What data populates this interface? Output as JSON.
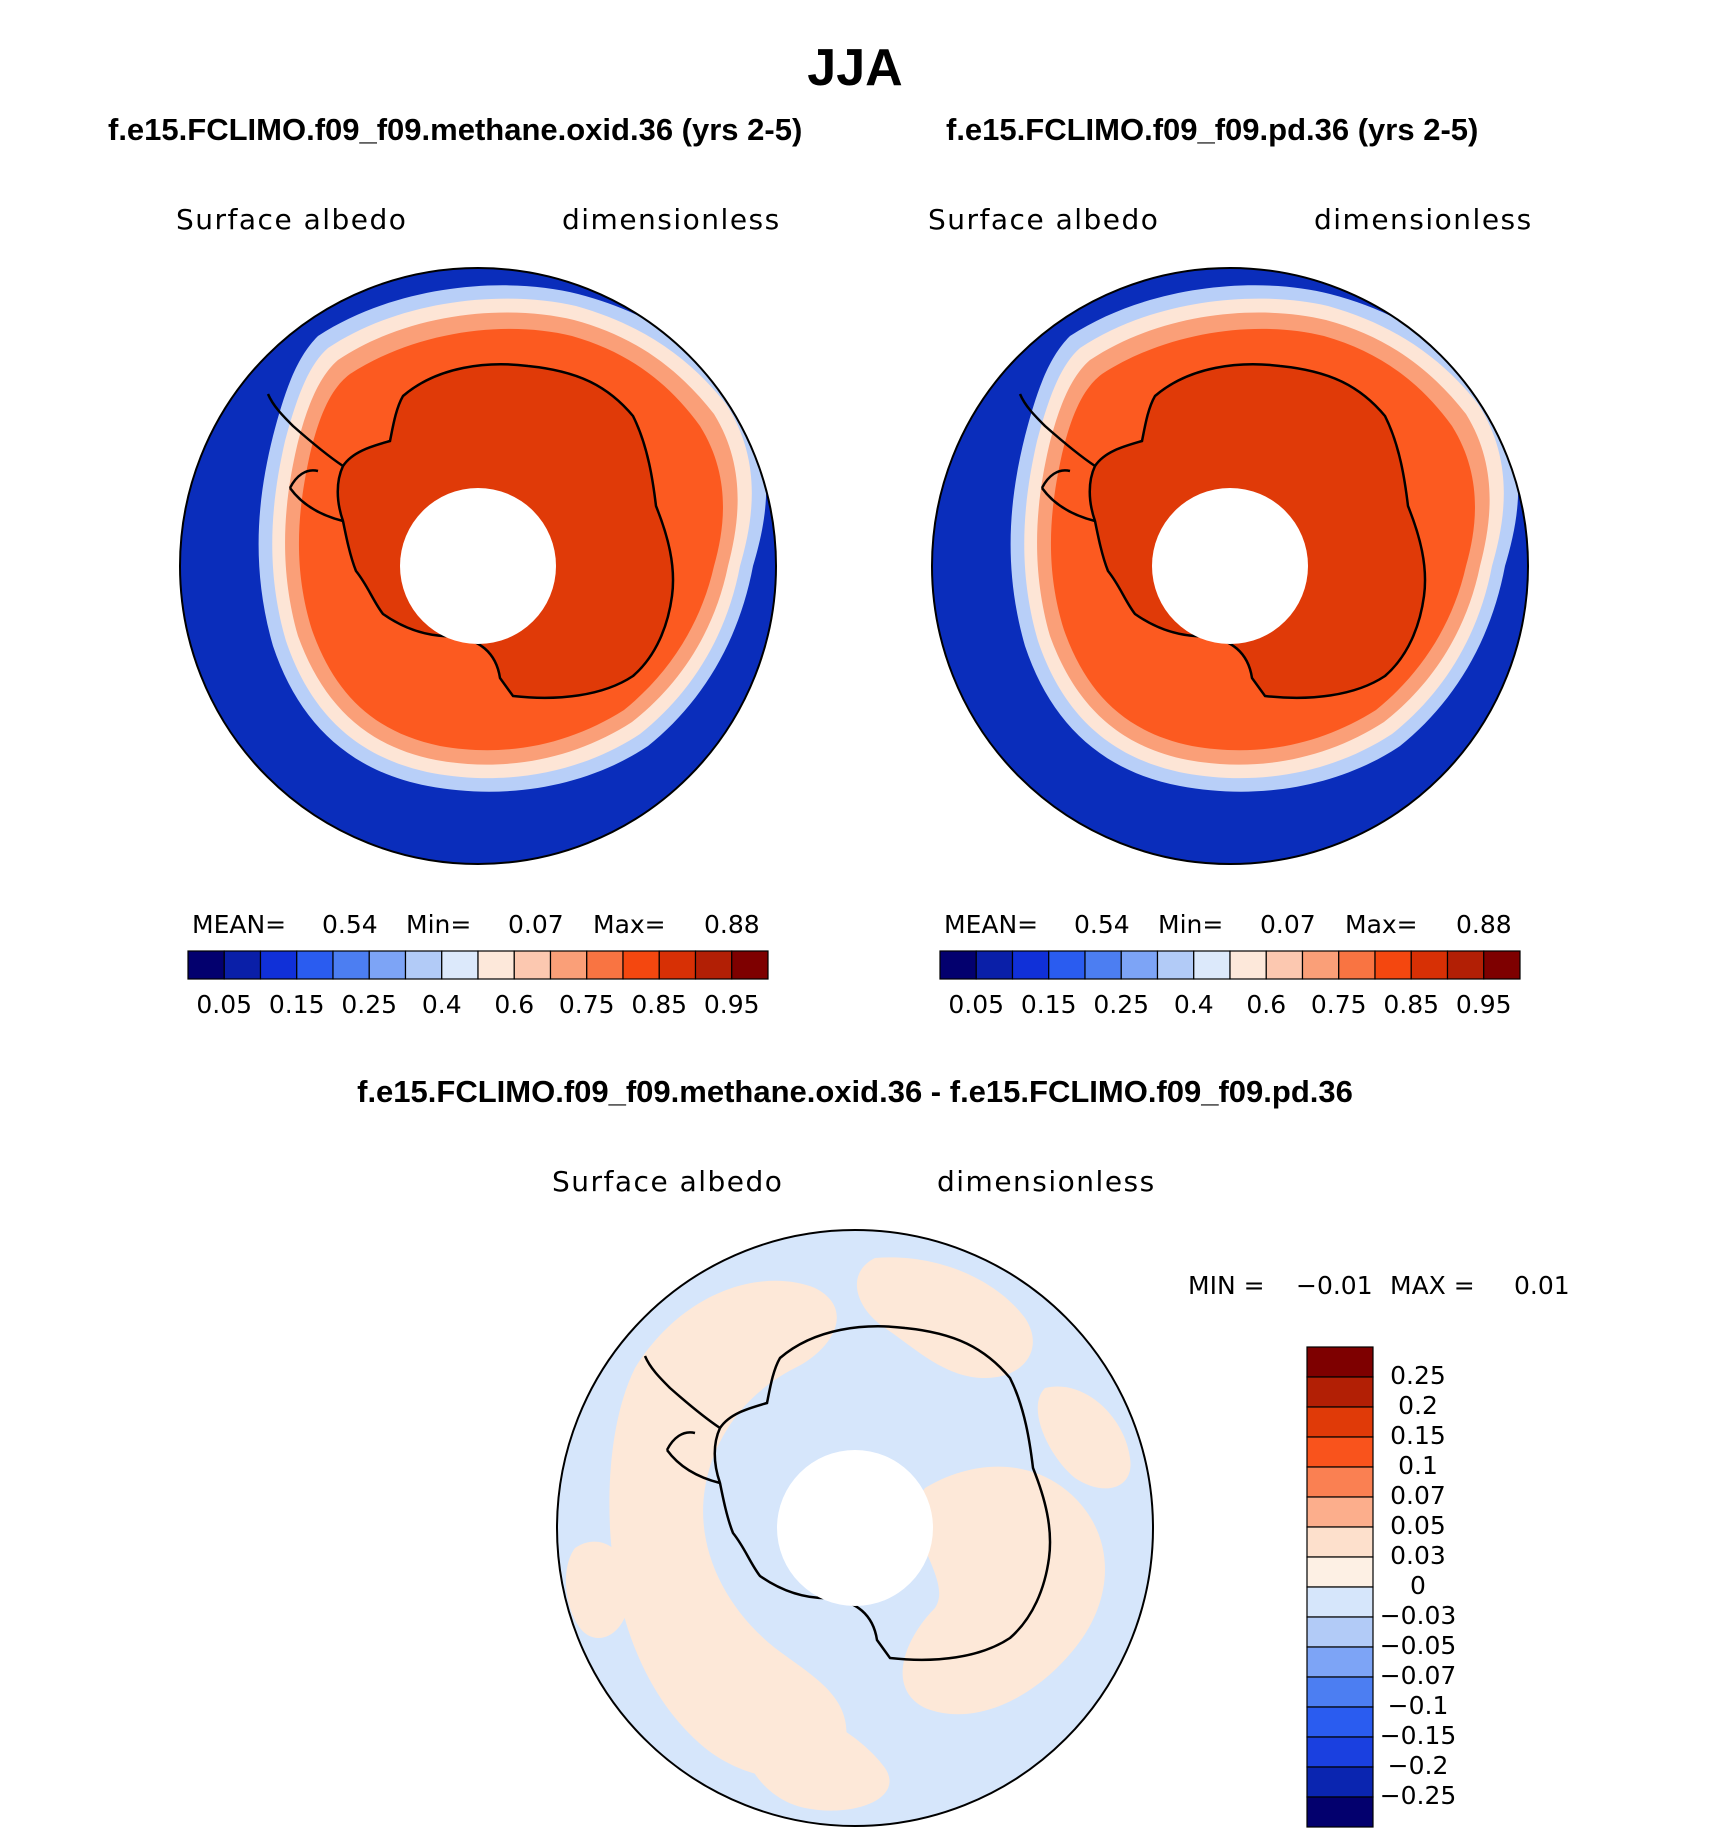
{
  "title": "JJA",
  "colors": {
    "ocean_blue": "#0a2dbb",
    "orange_main": "#fc5a20",
    "orange_dark": "#e03a08",
    "diff_blue": "#d6e6fb",
    "diff_peach": "#fde8d8"
  },
  "panels": [
    {
      "title": "f.e15.FCLIMO.f09_f09.methane.oxid.36 (yrs 2-5)",
      "variable": "Surface albedo",
      "units": "dimensionless",
      "stats": {
        "mean_label": "MEAN=",
        "mean": "0.54",
        "min_label": "Min=",
        "min": "0.07",
        "max_label": "Max=",
        "max": "0.88"
      }
    },
    {
      "title": "f.e15.FCLIMO.f09_f09.pd.36 (yrs 2-5)",
      "variable": "Surface albedo",
      "units": "dimensionless",
      "stats": {
        "mean_label": "MEAN=",
        "mean": "0.54",
        "min_label": "Min=",
        "min": "0.07",
        "max_label": "Max=",
        "max": "0.88"
      }
    }
  ],
  "colorbar": {
    "colors": [
      "#03006e",
      "#0a1fa8",
      "#1030d8",
      "#2a5cf0",
      "#4c7ef2",
      "#7da4f6",
      "#b2cbf7",
      "#dce9fb",
      "#fde8da",
      "#fcc8b0",
      "#fa9f78",
      "#f97442",
      "#f4470f",
      "#d73005",
      "#b21f05",
      "#7e0000"
    ],
    "labels": [
      "0.05",
      "0.15",
      "0.25",
      "0.4",
      "0.6",
      "0.75",
      "0.85",
      "0.95"
    ]
  },
  "diff": {
    "title": "f.e15.FCLIMO.f09_f09.methane.oxid.36 - f.e15.FCLIMO.f09_f09.pd.36",
    "variable": "Surface albedo",
    "units": "dimensionless",
    "minmax": {
      "min_label": "MIN =",
      "min": "−0.01",
      "max_label": "MAX =",
      "max": "0.01"
    },
    "colorbar": {
      "colors": [
        "#7e0000",
        "#b21f05",
        "#e03a08",
        "#f9531c",
        "#fa8052",
        "#fcae8c",
        "#fde0cc",
        "#fdf0e4",
        "#d6e6fb",
        "#b2cbf7",
        "#7da4f6",
        "#4c7ef2",
        "#2a5cf0",
        "#1a40e0",
        "#0a25b0",
        "#03006e"
      ],
      "labels": [
        "0.25",
        "0.2",
        "0.15",
        "0.1",
        "0.07",
        "0.05",
        "0.03",
        "0",
        "−0.03",
        "−0.05",
        "−0.07",
        "−0.1",
        "−0.15",
        "−0.2",
        "−0.25"
      ]
    }
  }
}
